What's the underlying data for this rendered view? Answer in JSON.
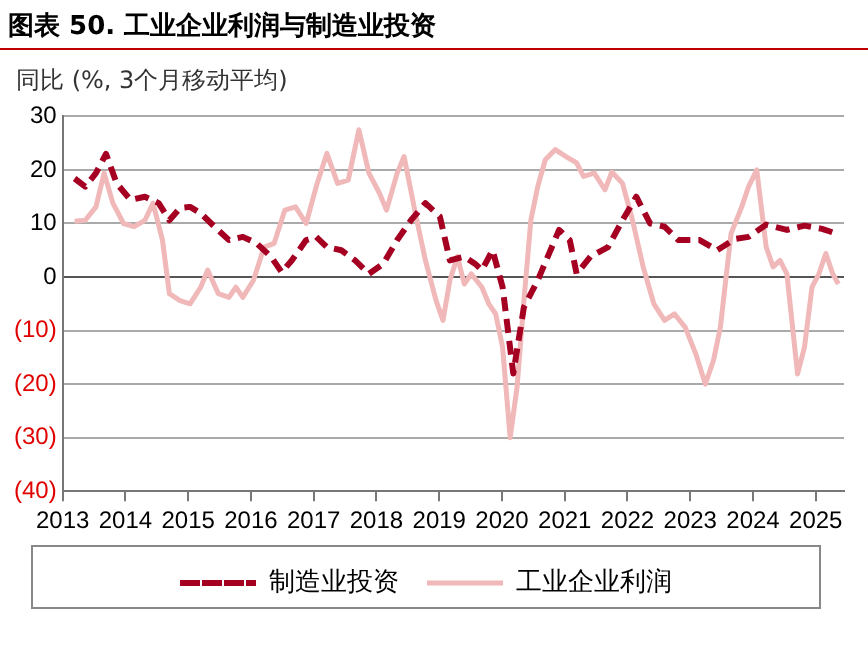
{
  "chart_data": {
    "type": "line",
    "title": "图表 50. 工业企业利润与制造业投资",
    "ylabel": "同比 (%, 3个月移动平均)",
    "xlim": [
      2013,
      2025.45
    ],
    "xticks": [
      2013,
      2014,
      2015,
      2016,
      2017,
      2018,
      2019,
      2020,
      2021,
      2022,
      2023,
      2024,
      2025
    ],
    "ylim": [
      -40,
      30
    ],
    "yticks": [
      {
        "value": -40,
        "label": "(40)"
      },
      {
        "value": -30,
        "label": "(30)"
      },
      {
        "value": -20,
        "label": "(20)"
      },
      {
        "value": -10,
        "label": "(10)"
      },
      0,
      10,
      20,
      30
    ],
    "grid": "y",
    "legend": "bottom",
    "marker": "none",
    "series": [
      {
        "name": "制造业投资",
        "color": "#a50021",
        "line_style": "dashed",
        "x": [
          2013.19,
          2013.36,
          2013.53,
          2013.69,
          2013.86,
          2014.08,
          2014.31,
          2014.53,
          2014.7,
          2014.87,
          2015.03,
          2015.2,
          2015.42,
          2015.65,
          2015.87,
          2016.09,
          2016.32,
          2016.49,
          2016.65,
          2016.88,
          2017.04,
          2017.21,
          2017.44,
          2017.66,
          2017.88,
          2018.11,
          2018.33,
          2018.55,
          2018.78,
          2019.01,
          2019.17,
          2019.4,
          2019.57,
          2019.68,
          2019.85,
          2020.01,
          2020.18,
          2020.35,
          2020.57,
          2020.91,
          2021.08,
          2021.19,
          2021.41,
          2021.69,
          2021.92,
          2022.14,
          2022.36,
          2022.59,
          2022.81,
          2023.15,
          2023.43,
          2023.71,
          2023.93,
          2024.21,
          2024.54,
          2024.82,
          2025.1,
          2025.33
        ],
        "values": [
          18.4,
          16.9,
          19.4,
          23,
          17.5,
          14.4,
          15,
          13.8,
          10.6,
          12.9,
          13.1,
          11.9,
          9.4,
          6.9,
          7.5,
          6.3,
          3.8,
          0.9,
          3.1,
          6.9,
          7.5,
          5.6,
          5,
          3.1,
          0.6,
          2.5,
          6.9,
          10.6,
          13.8,
          11.3,
          3.1,
          3.8,
          2.5,
          1.3,
          5,
          -1.9,
          -18,
          -5.6,
          -0.6,
          8.8,
          6.9,
          0.6,
          3.8,
          5.6,
          10.6,
          15,
          10,
          9.4,
          6.9,
          6.9,
          5,
          7.1,
          7.5,
          9.8,
          8.8,
          9.6,
          9,
          8.1
        ]
      },
      {
        "name": "工业企业利润",
        "color": "#f0b8b8",
        "line_style": "solid",
        "x": [
          2013.19,
          2013.36,
          2013.53,
          2013.66,
          2013.8,
          2013.97,
          2014.14,
          2014.31,
          2014.44,
          2014.59,
          2014.7,
          2014.87,
          2015.03,
          2015.2,
          2015.31,
          2015.48,
          2015.65,
          2015.76,
          2015.87,
          2016.04,
          2016.21,
          2016.37,
          2016.54,
          2016.71,
          2016.88,
          2017.04,
          2017.21,
          2017.38,
          2017.55,
          2017.72,
          2017.88,
          2018.05,
          2018.16,
          2018.33,
          2018.44,
          2018.62,
          2018.78,
          2018.95,
          2019.06,
          2019.17,
          2019.29,
          2019.4,
          2019.51,
          2019.68,
          2019.79,
          2019.9,
          2020.01,
          2020.13,
          2020.24,
          2020.35,
          2020.46,
          2020.57,
          2020.69,
          2020.85,
          2021.02,
          2021.19,
          2021.3,
          2021.47,
          2021.64,
          2021.75,
          2021.92,
          2022.08,
          2022.25,
          2022.42,
          2022.59,
          2022.75,
          2022.92,
          2023.09,
          2023.24,
          2023.37,
          2023.48,
          2023.65,
          2023.82,
          2023.93,
          2024.06,
          2024.21,
          2024.32,
          2024.43,
          2024.54,
          2024.71,
          2024.82,
          2024.94,
          2025.05,
          2025.16,
          2025.27,
          2025.36
        ],
        "values": [
          10.4,
          10.6,
          13.1,
          19.4,
          13.8,
          10,
          9.4,
          10.6,
          13.8,
          6.9,
          -3.1,
          -4.4,
          -5,
          -1.9,
          1.3,
          -3.1,
          -3.8,
          -1.9,
          -3.8,
          -0.6,
          5.6,
          6.3,
          12.5,
          13.1,
          10,
          16.9,
          23.1,
          17.5,
          18.1,
          27.5,
          19.4,
          15.6,
          12.5,
          19.4,
          22.5,
          11.9,
          3.1,
          -4.4,
          -8.1,
          -0.6,
          3.8,
          -1.3,
          0.6,
          -1.9,
          -5,
          -6.9,
          -13.1,
          -30,
          -20.6,
          -4.4,
          10.6,
          16.9,
          21.9,
          23.8,
          22.5,
          21.3,
          18.8,
          19.4,
          16.3,
          19.6,
          17.5,
          10.6,
          1.9,
          -5,
          -8.1,
          -6.9,
          -9.4,
          -14.4,
          -20,
          -15.6,
          -9.4,
          8.1,
          13.1,
          16.9,
          20,
          5.6,
          1.9,
          3.1,
          0.6,
          -18.1,
          -13.1,
          -1.9,
          0.6,
          4.4,
          0.6,
          -1.3
        ]
      }
    ]
  }
}
